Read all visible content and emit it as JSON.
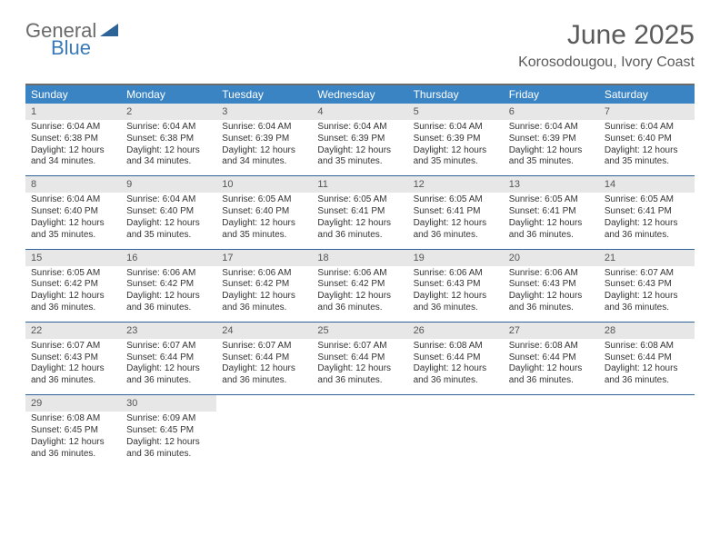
{
  "logo": {
    "text1": "General",
    "text2": "Blue"
  },
  "title": "June 2025",
  "subtitle": "Korosodougou, Ivory Coast",
  "colors": {
    "header_bg": "#3a84c4",
    "header_text": "#ffffff",
    "row_divider": "#2d6396",
    "daynum_bg": "#e7e7e7",
    "body_text": "#333333",
    "title_text": "#5a5a5a"
  },
  "weekdays": [
    "Sunday",
    "Monday",
    "Tuesday",
    "Wednesday",
    "Thursday",
    "Friday",
    "Saturday"
  ],
  "days": [
    {
      "n": 1,
      "sunrise": "6:04 AM",
      "sunset": "6:38 PM",
      "daylight": "12 hours and 34 minutes."
    },
    {
      "n": 2,
      "sunrise": "6:04 AM",
      "sunset": "6:38 PM",
      "daylight": "12 hours and 34 minutes."
    },
    {
      "n": 3,
      "sunrise": "6:04 AM",
      "sunset": "6:39 PM",
      "daylight": "12 hours and 34 minutes."
    },
    {
      "n": 4,
      "sunrise": "6:04 AM",
      "sunset": "6:39 PM",
      "daylight": "12 hours and 35 minutes."
    },
    {
      "n": 5,
      "sunrise": "6:04 AM",
      "sunset": "6:39 PM",
      "daylight": "12 hours and 35 minutes."
    },
    {
      "n": 6,
      "sunrise": "6:04 AM",
      "sunset": "6:39 PM",
      "daylight": "12 hours and 35 minutes."
    },
    {
      "n": 7,
      "sunrise": "6:04 AM",
      "sunset": "6:40 PM",
      "daylight": "12 hours and 35 minutes."
    },
    {
      "n": 8,
      "sunrise": "6:04 AM",
      "sunset": "6:40 PM",
      "daylight": "12 hours and 35 minutes."
    },
    {
      "n": 9,
      "sunrise": "6:04 AM",
      "sunset": "6:40 PM",
      "daylight": "12 hours and 35 minutes."
    },
    {
      "n": 10,
      "sunrise": "6:05 AM",
      "sunset": "6:40 PM",
      "daylight": "12 hours and 35 minutes."
    },
    {
      "n": 11,
      "sunrise": "6:05 AM",
      "sunset": "6:41 PM",
      "daylight": "12 hours and 36 minutes."
    },
    {
      "n": 12,
      "sunrise": "6:05 AM",
      "sunset": "6:41 PM",
      "daylight": "12 hours and 36 minutes."
    },
    {
      "n": 13,
      "sunrise": "6:05 AM",
      "sunset": "6:41 PM",
      "daylight": "12 hours and 36 minutes."
    },
    {
      "n": 14,
      "sunrise": "6:05 AM",
      "sunset": "6:41 PM",
      "daylight": "12 hours and 36 minutes."
    },
    {
      "n": 15,
      "sunrise": "6:05 AM",
      "sunset": "6:42 PM",
      "daylight": "12 hours and 36 minutes."
    },
    {
      "n": 16,
      "sunrise": "6:06 AM",
      "sunset": "6:42 PM",
      "daylight": "12 hours and 36 minutes."
    },
    {
      "n": 17,
      "sunrise": "6:06 AM",
      "sunset": "6:42 PM",
      "daylight": "12 hours and 36 minutes."
    },
    {
      "n": 18,
      "sunrise": "6:06 AM",
      "sunset": "6:42 PM",
      "daylight": "12 hours and 36 minutes."
    },
    {
      "n": 19,
      "sunrise": "6:06 AM",
      "sunset": "6:43 PM",
      "daylight": "12 hours and 36 minutes."
    },
    {
      "n": 20,
      "sunrise": "6:06 AM",
      "sunset": "6:43 PM",
      "daylight": "12 hours and 36 minutes."
    },
    {
      "n": 21,
      "sunrise": "6:07 AM",
      "sunset": "6:43 PM",
      "daylight": "12 hours and 36 minutes."
    },
    {
      "n": 22,
      "sunrise": "6:07 AM",
      "sunset": "6:43 PM",
      "daylight": "12 hours and 36 minutes."
    },
    {
      "n": 23,
      "sunrise": "6:07 AM",
      "sunset": "6:44 PM",
      "daylight": "12 hours and 36 minutes."
    },
    {
      "n": 24,
      "sunrise": "6:07 AM",
      "sunset": "6:44 PM",
      "daylight": "12 hours and 36 minutes."
    },
    {
      "n": 25,
      "sunrise": "6:07 AM",
      "sunset": "6:44 PM",
      "daylight": "12 hours and 36 minutes."
    },
    {
      "n": 26,
      "sunrise": "6:08 AM",
      "sunset": "6:44 PM",
      "daylight": "12 hours and 36 minutes."
    },
    {
      "n": 27,
      "sunrise": "6:08 AM",
      "sunset": "6:44 PM",
      "daylight": "12 hours and 36 minutes."
    },
    {
      "n": 28,
      "sunrise": "6:08 AM",
      "sunset": "6:44 PM",
      "daylight": "12 hours and 36 minutes."
    },
    {
      "n": 29,
      "sunrise": "6:08 AM",
      "sunset": "6:45 PM",
      "daylight": "12 hours and 36 minutes."
    },
    {
      "n": 30,
      "sunrise": "6:09 AM",
      "sunset": "6:45 PM",
      "daylight": "12 hours and 36 minutes."
    }
  ],
  "labels": {
    "sunrise": "Sunrise:",
    "sunset": "Sunset:",
    "daylight": "Daylight:"
  },
  "layout": {
    "first_weekday_index": 0,
    "days_in_month": 30,
    "cols": 7
  }
}
